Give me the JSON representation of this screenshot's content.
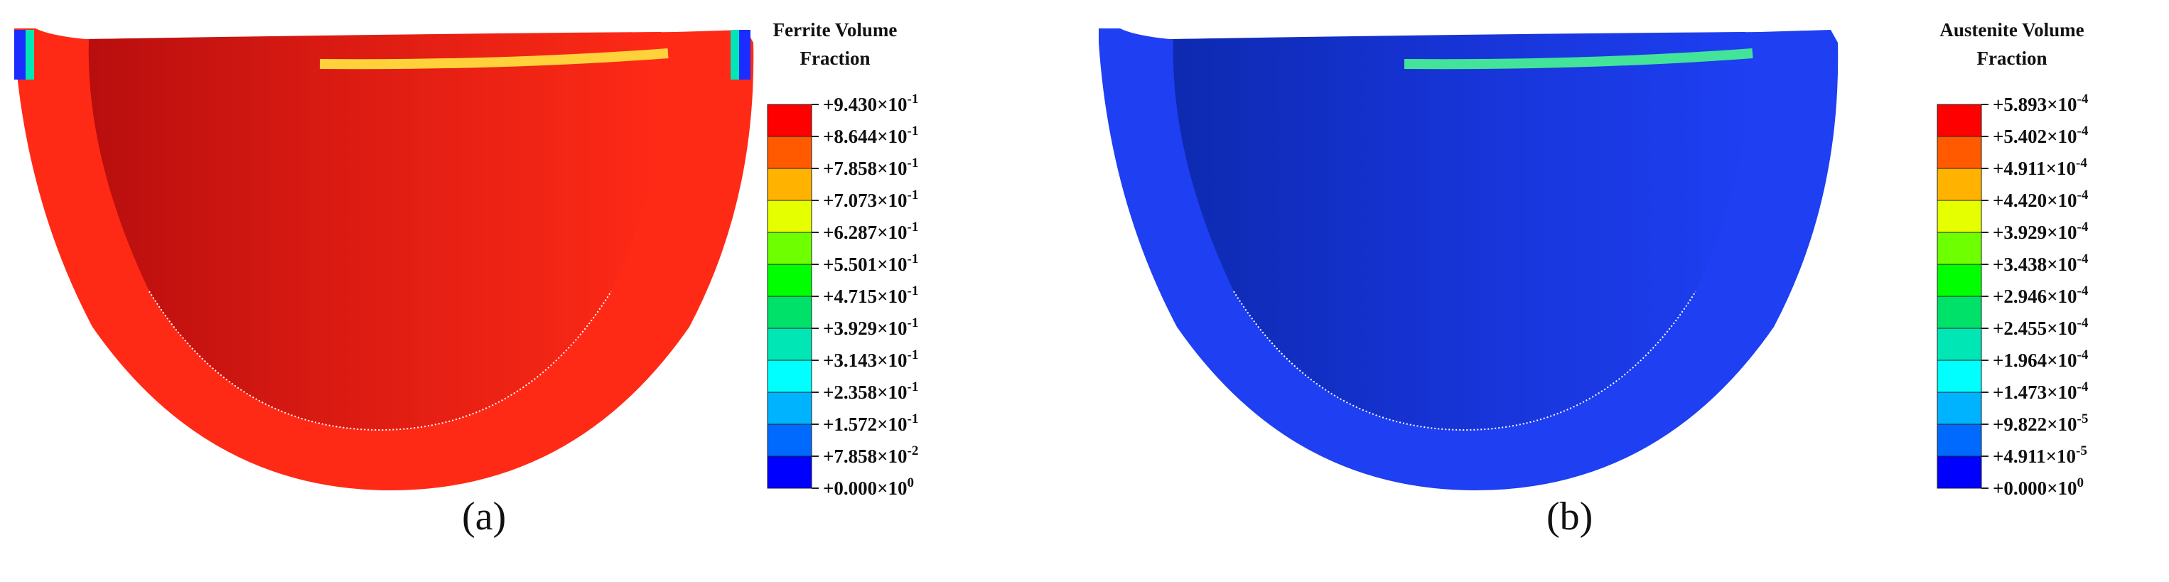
{
  "panels": [
    {
      "id": "a",
      "caption": "(a)",
      "legend_title_line1": "Ferrite Volume",
      "legend_title_line2": "Fraction",
      "base_color": "#ff2a16",
      "shade_color": "#b80e0e",
      "edge_color": "#ffd13b",
      "legend_values": [
        "+9.430×10-1",
        "+8.644×10-1",
        "+7.858×10-1",
        "+7.073×10-1",
        "+6.287×10-1",
        "+5.501×10-1",
        "+4.715×10-1",
        "+3.929×10-1",
        "+3.143×10-1",
        "+2.358×10-1",
        "+1.572×10-1",
        "+7.858×10-2",
        "+0.000×100"
      ]
    },
    {
      "id": "b",
      "caption": "(b)",
      "legend_title_line1": "Austenite Volume",
      "legend_title_line2": "Fraction",
      "base_color": "#1e3ff2",
      "shade_color": "#0d2ab0",
      "edge_color": "#44e39a",
      "legend_values": [
        "+5.893×10-4",
        "+5.402×10-4",
        "+4.911×10-4",
        "+4.420×10-4",
        "+3.929×10-4",
        "+3.438×10-4",
        "+2.946×10-4",
        "+2.455×10-4",
        "+1.964×10-4",
        "+1.473×10-4",
        "+9.822×10-5",
        "+4.911×10-5",
        "+0.000×100"
      ]
    }
  ],
  "legend_colors": [
    "#ff0000",
    "#ff5a00",
    "#ffb300",
    "#e6ff00",
    "#6eff00",
    "#00ff00",
    "#00e16a",
    "#00e6b4",
    "#00ffff",
    "#00b3ff",
    "#006aff",
    "#0000ff"
  ]
}
